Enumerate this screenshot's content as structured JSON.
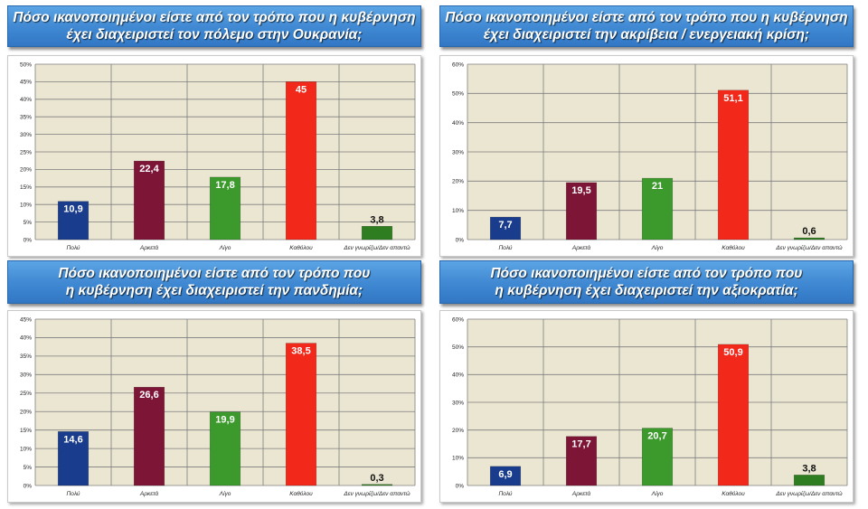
{
  "colors": {
    "plot_bg": "#ebe6d2",
    "grid": "#7d7d7d",
    "bars": [
      "#1a3c8c",
      "#7d1537",
      "#3c9a2c",
      "#f2281a",
      "#2e7d20"
    ]
  },
  "charts": [
    {
      "title": "Πόσο ικανοποιημένοι είστε από τον τρόπο που η κυβέρνηση\nέχει διαχειριστεί τον πόλεμο στην Ουκρανία;",
      "ytick_labels": [
        "0%",
        "5%",
        "10%",
        "15%",
        "20%",
        "25%",
        "30%",
        "35%",
        "40%",
        "45%",
        "50%"
      ]
    },
    {
      "title": "Πόσο ικανοποιημένοι είστε από τον τρόπο που η κυβέρνηση\nέχει διαχειριστεί την ακρίβεια / ενεργειακή κρίση;",
      "ytick_labels": [
        "0%",
        "10%",
        "20%",
        "30%",
        "40%",
        "50%",
        "60%"
      ]
    },
    {
      "title": "Πόσο ικανοποιημένοι είστε από τον τρόπο που\nη κυβέρνηση έχει διαχειριστεί την πανδημία;",
      "ytick_labels": [
        "0%",
        "5%",
        "10%",
        "15%",
        "20%",
        "25%",
        "30%",
        "35%",
        "40%",
        "45%"
      ]
    },
    {
      "title": "Πόσο ικανοποιημένοι είστε από τον τρόπο που\nη κυβέρνηση  έχει διαχειριστεί την αξιοκρατία;",
      "ytick_labels": [
        "0%",
        "10%",
        "20%",
        "30%",
        "40%",
        "50%",
        "60%"
      ]
    }
  ],
  "chart_data": [
    {
      "type": "bar",
      "title": "Πόσο ικανοποιημένοι είστε από τον τρόπο που η κυβέρνηση έχει διαχειριστεί τον πόλεμο στην Ουκρανία;",
      "categories": [
        "Πολύ",
        "Αρκετά",
        "Λίγο",
        "Καθόλου",
        "Δεν γνωρίζω/Δεν απαντώ"
      ],
      "values": [
        10.9,
        22.4,
        17.8,
        45,
        3.8
      ],
      "value_labels": [
        "10,9",
        "22,4",
        "17,8",
        "45",
        "3,8"
      ],
      "ylim": [
        0,
        50
      ],
      "ytick_step": 5,
      "grid": true
    },
    {
      "type": "bar",
      "title": "Πόσο ικανοποιημένοι είστε από τον τρόπο που η κυβέρνηση έχει διαχειριστεί την ακρίβεια / ενεργειακή κρίση;",
      "categories": [
        "Πολύ",
        "Αρκετά",
        "Λίγο",
        "Καθόλου",
        "Δεν γνωρίζω/Δεν απαντώ"
      ],
      "values": [
        7.7,
        19.5,
        21,
        51.1,
        0.6
      ],
      "value_labels": [
        "7,7",
        "19,5",
        "21",
        "51,1",
        "0,6"
      ],
      "ylim": [
        0,
        60
      ],
      "ytick_step": 10,
      "grid": true
    },
    {
      "type": "bar",
      "title": "Πόσο ικανοποιημένοι είστε από τον τρόπο που η κυβέρνηση έχει διαχειριστεί την πανδημία;",
      "categories": [
        "Πολύ",
        "Αρκετά",
        "Λίγο",
        "Καθόλου",
        "Δεν γνωρίζω/Δεν απαντώ"
      ],
      "values": [
        14.6,
        26.6,
        19.9,
        38.5,
        0.3
      ],
      "value_labels": [
        "14,6",
        "26,6",
        "19,9",
        "38,5",
        "0,3"
      ],
      "ylim": [
        0,
        45
      ],
      "ytick_step": 5,
      "grid": true
    },
    {
      "type": "bar",
      "title": "Πόσο ικανοποιημένοι είστε από τον τρόπο που η κυβέρνηση έχει διαχειριστεί την αξιοκρατία;",
      "categories": [
        "Πολύ",
        "Αρκετά",
        "Λίγο",
        "Καθόλου",
        "Δεν γνωρίζω/Δεν απαντώ"
      ],
      "values": [
        6.9,
        17.7,
        20.7,
        50.9,
        3.8
      ],
      "value_labels": [
        "6,9",
        "17,7",
        "20,7",
        "50,9",
        "3,8"
      ],
      "ylim": [
        0,
        60
      ],
      "ytick_step": 10,
      "grid": true
    }
  ]
}
